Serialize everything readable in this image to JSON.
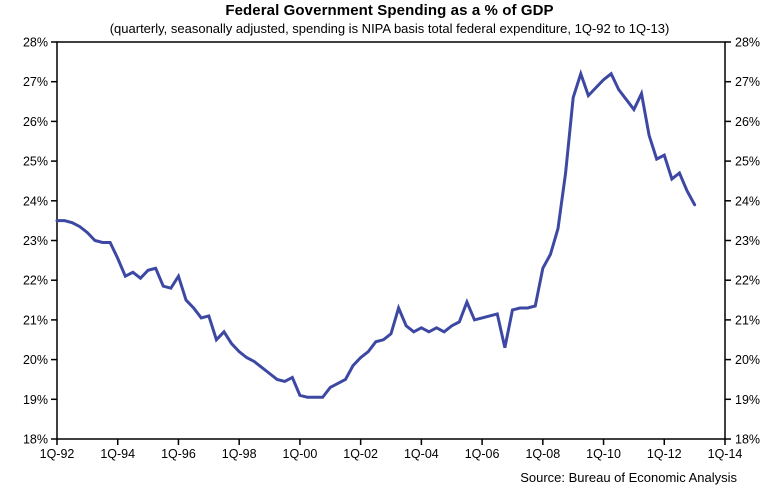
{
  "chart_data": {
    "type": "line",
    "title": "Federal Government Spending as a % of GDP",
    "subtitle": "(quarterly, seasonally adjusted, spending is NIPA basis total federal expenditure, 1Q-92 to 1Q-13)",
    "source": "Source: Bureau of Economic Analysis",
    "x_tick_labels": [
      "1Q-92",
      "1Q-94",
      "1Q-96",
      "1Q-98",
      "1Q-00",
      "1Q-02",
      "1Q-04",
      "1Q-06",
      "1Q-08",
      "1Q-10",
      "1Q-12",
      "1Q-14"
    ],
    "x_quarters_per_tick": 8,
    "x_total_quarters": 88,
    "y_tick_labels": [
      "28%",
      "27%",
      "26%",
      "25%",
      "24%",
      "23%",
      "22%",
      "21%",
      "20%",
      "19%",
      "18%"
    ],
    "ylim": [
      18,
      28
    ],
    "y_step": 1,
    "y_axis_sides": "both",
    "grid": "off",
    "legend": "none",
    "line_color": "#3d48a3",
    "axis_color": "#000000",
    "background_color": "#ffffff",
    "series": [
      {
        "name": "Federal government spending as % of GDP",
        "frequency": "quarterly",
        "start": "1Q-92",
        "end": "1Q-13",
        "values": [
          23.5,
          23.5,
          23.45,
          23.35,
          23.2,
          23.0,
          22.95,
          22.95,
          22.55,
          22.1,
          22.2,
          22.05,
          22.25,
          22.3,
          21.85,
          21.8,
          22.1,
          21.5,
          21.3,
          21.05,
          21.1,
          20.5,
          20.7,
          20.4,
          20.2,
          20.05,
          19.95,
          19.8,
          19.65,
          19.5,
          19.45,
          19.55,
          19.1,
          19.05,
          19.05,
          19.05,
          19.3,
          19.4,
          19.5,
          19.85,
          20.05,
          20.2,
          20.45,
          20.5,
          20.65,
          21.3,
          20.85,
          20.7,
          20.8,
          20.7,
          20.8,
          20.7,
          20.85,
          20.95,
          21.45,
          21.0,
          21.05,
          21.1,
          21.15,
          20.3,
          21.25,
          21.3,
          21.3,
          21.35,
          22.3,
          22.65,
          23.3,
          24.7,
          26.6,
          27.2,
          26.65,
          26.85,
          27.05,
          27.2,
          26.8,
          26.55,
          26.3,
          26.7,
          25.65,
          25.05,
          25.15,
          24.55,
          24.7,
          24.25,
          23.9
        ]
      }
    ]
  }
}
